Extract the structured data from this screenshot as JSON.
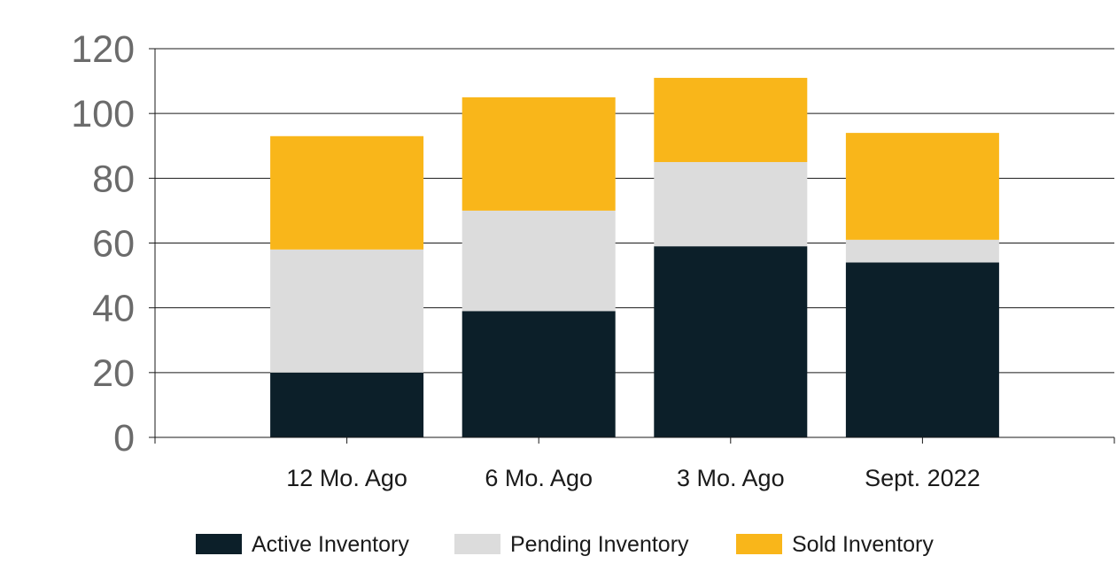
{
  "chart_data": {
    "type": "bar",
    "stacked": true,
    "categories": [
      "12 Mo. Ago",
      "6 Mo. Ago",
      "3 Mo. Ago",
      "Sept. 2022"
    ],
    "series": [
      {
        "name": "Active Inventory",
        "color": "#0c1f29",
        "values": [
          20,
          39,
          59,
          54
        ]
      },
      {
        "name": "Pending Inventory",
        "color": "#dcdcdc",
        "values": [
          38,
          31,
          26,
          7
        ]
      },
      {
        "name": "Sold Inventory",
        "color": "#f9b61a",
        "values": [
          35,
          35,
          26,
          33
        ]
      }
    ],
    "title": "",
    "xlabel": "",
    "ylabel": "",
    "ylim": [
      0,
      120
    ],
    "yticks": [
      "0",
      "20",
      "40",
      "60",
      "80",
      "100",
      "120"
    ],
    "grid": true,
    "legend": "bottom"
  }
}
